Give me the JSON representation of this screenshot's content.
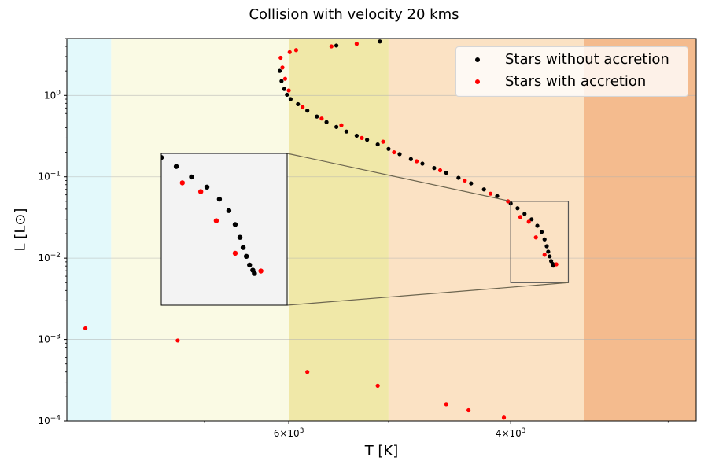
{
  "chart_data": {
    "type": "scatter",
    "title": "Collision with velocity 20 kms",
    "xlabel": "T [K]",
    "ylabel": "L [L⊙]",
    "x_scale": "log",
    "x_inverted": true,
    "xlim": [
      9000,
      2850
    ],
    "y_scale": "log",
    "ylim": [
      0.0001,
      5
    ],
    "x_tick_labels": [
      {
        "value": 6000,
        "base": "6",
        "exp": "3"
      },
      {
        "value": 4000,
        "base": "4",
        "exp": "3"
      }
    ],
    "x_minor_ticks": [
      7000,
      5000,
      3000
    ],
    "y_tick_labels": [
      {
        "value": 0.0001,
        "exp": "−4"
      },
      {
        "value": 0.001,
        "exp": "−3"
      },
      {
        "value": 0.01,
        "exp": "−2"
      },
      {
        "value": 0.1,
        "exp": "−1"
      },
      {
        "value": 1,
        "exp": "0"
      }
    ],
    "grid": "horizontal",
    "legend_position": "top-right",
    "background_bands": [
      {
        "x_from": 9000,
        "x_to": 8300,
        "color": "#e3f9fb"
      },
      {
        "x_from": 8300,
        "x_to": 6000,
        "color": "#fafae4"
      },
      {
        "x_from": 6000,
        "x_to": 5000,
        "color": "#f0e8a8"
      },
      {
        "x_from": 5000,
        "x_to": 3500,
        "color": "#fbe2c4"
      },
      {
        "x_from": 3500,
        "x_to": 2850,
        "color": "#f4bb8e"
      }
    ],
    "series": [
      {
        "name": "Stars without accretion",
        "color": "#000000",
        "points": [
          [
            6100,
            2.0
          ],
          [
            6080,
            1.5
          ],
          [
            6050,
            1.2
          ],
          [
            6020,
            1.02
          ],
          [
            5980,
            0.9
          ],
          [
            5900,
            0.78
          ],
          [
            5800,
            0.65
          ],
          [
            5700,
            0.55
          ],
          [
            5600,
            0.47
          ],
          [
            5500,
            0.41
          ],
          [
            5400,
            0.36
          ],
          [
            5300,
            0.32
          ],
          [
            5200,
            0.285
          ],
          [
            5100,
            0.25
          ],
          [
            5000,
            0.22
          ],
          [
            4900,
            0.19
          ],
          [
            4800,
            0.165
          ],
          [
            4700,
            0.145
          ],
          [
            4600,
            0.128
          ],
          [
            4500,
            0.112
          ],
          [
            4400,
            0.097
          ],
          [
            4300,
            0.083
          ],
          [
            4200,
            0.07
          ],
          [
            4100,
            0.058
          ],
          [
            4000,
            0.047
          ],
          [
            3950,
            0.041
          ],
          [
            3900,
            0.035
          ],
          [
            3850,
            0.03
          ],
          [
            3810,
            0.025
          ],
          [
            3780,
            0.021
          ],
          [
            3760,
            0.017
          ],
          [
            3745,
            0.014
          ],
          [
            3735,
            0.012
          ],
          [
            3725,
            0.0105
          ],
          [
            3715,
            0.0092
          ],
          [
            3705,
            0.0085
          ],
          [
            3700,
            0.0081
          ],
          [
            5500,
            4.1
          ],
          [
            5080,
            4.6
          ]
        ]
      },
      {
        "name": "Stars with accretion",
        "color": "#ff0000",
        "points": [
          [
            6090,
            2.9
          ],
          [
            6070,
            2.2
          ],
          [
            6040,
            1.6
          ],
          [
            5990,
            3.4
          ],
          [
            5920,
            3.6
          ],
          [
            5550,
            4.0
          ],
          [
            5300,
            4.3
          ],
          [
            6000,
            1.15
          ],
          [
            5850,
            0.72
          ],
          [
            5650,
            0.52
          ],
          [
            5450,
            0.43
          ],
          [
            5250,
            0.3
          ],
          [
            5050,
            0.27
          ],
          [
            4950,
            0.2
          ],
          [
            4750,
            0.155
          ],
          [
            4550,
            0.12
          ],
          [
            4350,
            0.09
          ],
          [
            4150,
            0.062
          ],
          [
            4020,
            0.05
          ],
          [
            3930,
            0.032
          ],
          [
            3870,
            0.028
          ],
          [
            3820,
            0.018
          ],
          [
            3760,
            0.011
          ],
          [
            3680,
            0.0084
          ],
          [
            8700,
            0.00137
          ],
          [
            7350,
            0.00097
          ],
          [
            5800,
            0.0004
          ],
          [
            5100,
            0.00027
          ],
          [
            4500,
            0.00016
          ],
          [
            4320,
            0.000135
          ],
          [
            4050,
            0.00011
          ]
        ]
      }
    ],
    "inset_zoom": {
      "xlim": [
        4000,
        3600
      ],
      "ylim": [
        0.005,
        0.05
      ],
      "facecolor": "#f3f3f3"
    }
  }
}
